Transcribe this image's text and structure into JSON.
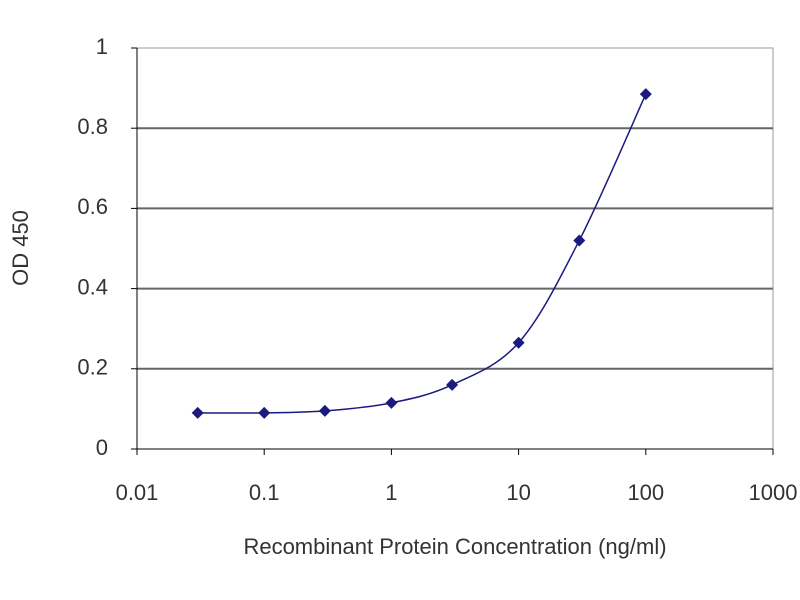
{
  "chart_data": {
    "type": "line",
    "xlabel": "Recombinant Protein Concentration (ng/ml)",
    "ylabel": "OD 450",
    "xscale": "log",
    "x": [
      0.03,
      0.1,
      0.3,
      1,
      3,
      10,
      30,
      100
    ],
    "series": [
      {
        "color": "#1a1a80",
        "values": [
          0.09,
          0.09,
          0.095,
          0.115,
          0.16,
          0.265,
          0.52,
          0.885
        ]
      }
    ],
    "xlim": [
      0.01,
      1000
    ],
    "xticks": [
      0.01,
      0.1,
      1,
      10,
      100,
      1000
    ],
    "ylim": [
      0,
      1
    ],
    "yticks": [
      0,
      0.2,
      0.4,
      0.6,
      0.8,
      1
    ],
    "grid": true
  }
}
